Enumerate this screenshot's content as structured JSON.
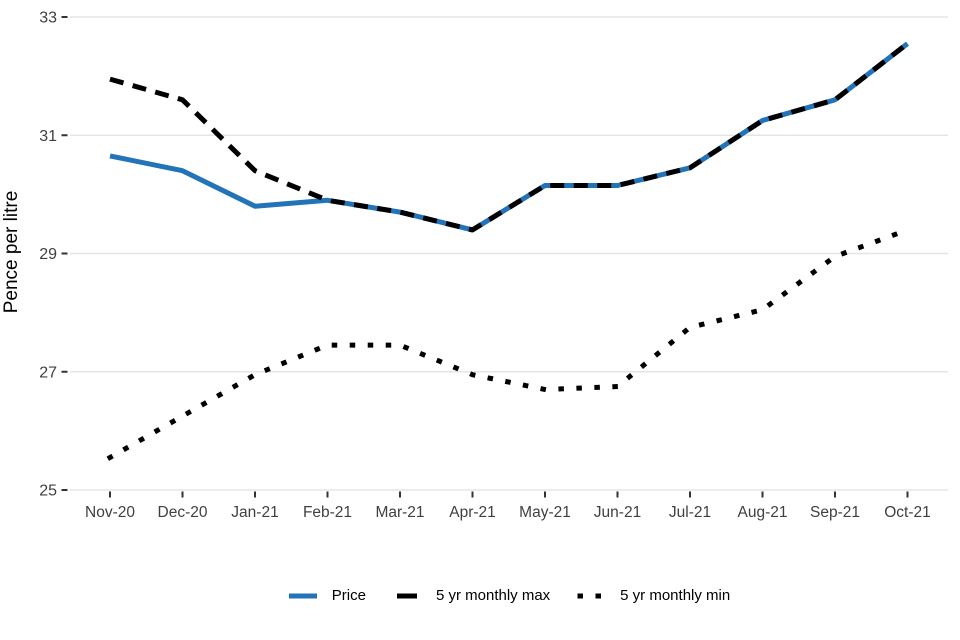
{
  "chart_data": {
    "type": "line",
    "title": "",
    "xlabel": "",
    "ylabel": "Pence per litre",
    "ylim": [
      25,
      33
    ],
    "yticks": [
      25,
      27,
      29,
      31,
      33
    ],
    "grid": "horizontal",
    "legend_position": "bottom",
    "categories": [
      "Nov-20",
      "Dec-20",
      "Jan-21",
      "Feb-21",
      "Mar-21",
      "Apr-21",
      "May-21",
      "Jun-21",
      "Jul-21",
      "Aug-21",
      "Sep-21",
      "Oct-21"
    ],
    "series": [
      {
        "key": "price",
        "name": "Price",
        "style": "solid",
        "color": "#2273b8",
        "values": [
          30.65,
          30.4,
          29.8,
          29.9,
          29.7,
          29.4,
          30.15,
          30.15,
          30.45,
          31.25,
          31.6,
          32.55
        ]
      },
      {
        "key": "max",
        "name": "5 yr monthly max",
        "style": "dashed",
        "color": "#000000",
        "values": [
          31.95,
          31.6,
          30.4,
          29.9,
          29.7,
          29.4,
          30.15,
          30.15,
          30.45,
          31.25,
          31.6,
          32.55
        ]
      },
      {
        "key": "min",
        "name": "5 yr monthly min",
        "style": "dotted",
        "color": "#000000",
        "values": [
          25.55,
          26.25,
          26.95,
          27.45,
          27.45,
          26.95,
          26.7,
          26.75,
          27.75,
          28.05,
          28.95,
          29.4
        ]
      }
    ],
    "colors": {
      "grid": "#e5e5e5",
      "tick_text": "#404040",
      "tick_mark": "#333333",
      "axis_label": "#000000"
    }
  }
}
